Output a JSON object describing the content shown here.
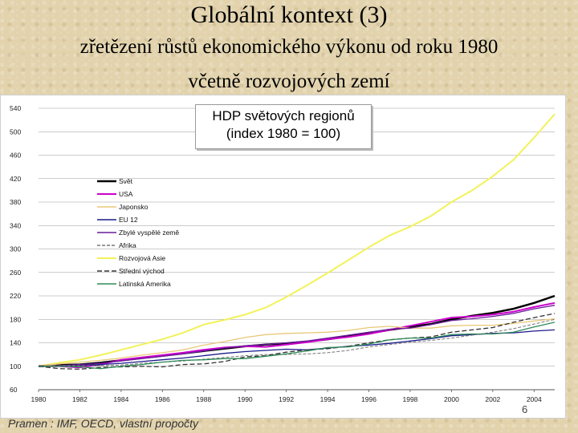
{
  "slide": {
    "title": "Globální kontext (3)",
    "subtitle_line1": "zřetězení růstů ekonomického výkonu od roku 1980",
    "subtitle_line2": "včetně rozvojových zemí",
    "source": "Pramen : IMF, OECD, vlastní propočty",
    "page_number": "6",
    "background_color": "#e2d3ad"
  },
  "chart_data": {
    "type": "line",
    "title_line1": "HDP světových regionů",
    "title_line2": "(index 1980 = 100)",
    "x": [
      1980,
      1981,
      1982,
      1983,
      1984,
      1985,
      1986,
      1987,
      1988,
      1989,
      1990,
      1991,
      1992,
      1993,
      1994,
      1995,
      1996,
      1997,
      1998,
      1999,
      2000,
      2001,
      2002,
      2003,
      2004,
      2005
    ],
    "x_ticks": [
      "1980",
      "1982",
      "1984",
      "1986",
      "1988",
      "1990",
      "1992",
      "1994",
      "1996",
      "1998",
      "2000",
      "2002",
      "2004"
    ],
    "y_ticks": [
      60,
      100,
      140,
      180,
      220,
      260,
      300,
      340,
      380,
      420,
      460,
      500,
      540
    ],
    "ylim": [
      60,
      540
    ],
    "grid": "horizontal",
    "legend_position": "top-left",
    "series": [
      {
        "name": "Svět",
        "color": "#000000",
        "width": 2.5,
        "dash": "",
        "values": [
          100,
          102,
          103,
          106,
          110,
          114,
          118,
          122,
          126,
          130,
          134,
          137,
          139,
          142,
          146,
          151,
          156,
          162,
          167,
          172,
          180,
          186,
          191,
          198,
          208,
          220
        ]
      },
      {
        "name": "USA",
        "color": "#cc00cc",
        "width": 2,
        "dash": "",
        "values": [
          100,
          100,
          98,
          103,
          111,
          115,
          119,
          123,
          128,
          132,
          134,
          133,
          137,
          141,
          146,
          150,
          155,
          162,
          169,
          176,
          183,
          185,
          188,
          193,
          201,
          208
        ]
      },
      {
        "name": "Japonsko",
        "color": "#e8c878",
        "width": 1.3,
        "dash": "",
        "values": [
          100,
          104,
          107,
          110,
          114,
          119,
          123,
          128,
          136,
          142,
          149,
          154,
          156,
          157,
          158,
          161,
          166,
          168,
          165,
          165,
          169,
          170,
          170,
          173,
          177,
          181
        ]
      },
      {
        "name": "EU 12",
        "color": "#1a1a8c",
        "width": 1.3,
        "dash": "",
        "values": [
          100,
          100,
          101,
          103,
          105,
          108,
          111,
          114,
          118,
          122,
          125,
          127,
          129,
          128,
          131,
          134,
          136,
          139,
          143,
          147,
          152,
          154,
          156,
          157,
          160,
          162
        ]
      },
      {
        "name": "Zbylé vyspělé země",
        "color": "#6a1b9a",
        "width": 1.3,
        "dash": "",
        "values": [
          100,
          101,
          103,
          105,
          109,
          113,
          117,
          121,
          126,
          131,
          135,
          137,
          140,
          143,
          148,
          153,
          158,
          163,
          165,
          171,
          178,
          181,
          185,
          190,
          198,
          204
        ]
      },
      {
        "name": "Afrika",
        "color": "#777777",
        "width": 1,
        "dash": "4,2",
        "values": [
          100,
          101,
          101,
          101,
          102,
          105,
          107,
          109,
          112,
          115,
          118,
          120,
          120,
          121,
          123,
          127,
          133,
          137,
          141,
          144,
          148,
          153,
          158,
          164,
          172,
          180
        ]
      },
      {
        "name": "Rozvojová Asie",
        "color": "#f2f25a",
        "width": 2,
        "dash": "",
        "values": [
          100,
          106,
          111,
          119,
          128,
          137,
          146,
          157,
          171,
          179,
          188,
          200,
          218,
          238,
          259,
          281,
          303,
          323,
          338,
          356,
          380,
          400,
          424,
          452,
          490,
          530
        ]
      },
      {
        "name": "Střední východ",
        "color": "#333333",
        "width": 1.3,
        "dash": "6,3",
        "values": [
          100,
          96,
          95,
          98,
          99,
          100,
          99,
          103,
          104,
          108,
          116,
          118,
          124,
          128,
          130,
          134,
          140,
          145,
          148,
          150,
          158,
          162,
          166,
          175,
          183,
          190
        ]
      },
      {
        "name": "Latinská Amerika",
        "color": "#2e8b57",
        "width": 1.3,
        "dash": "",
        "values": [
          100,
          100,
          99,
          96,
          100,
          103,
          107,
          110,
          111,
          113,
          113,
          117,
          121,
          126,
          132,
          133,
          138,
          145,
          148,
          148,
          154,
          155,
          155,
          158,
          167,
          175
        ]
      }
    ]
  }
}
